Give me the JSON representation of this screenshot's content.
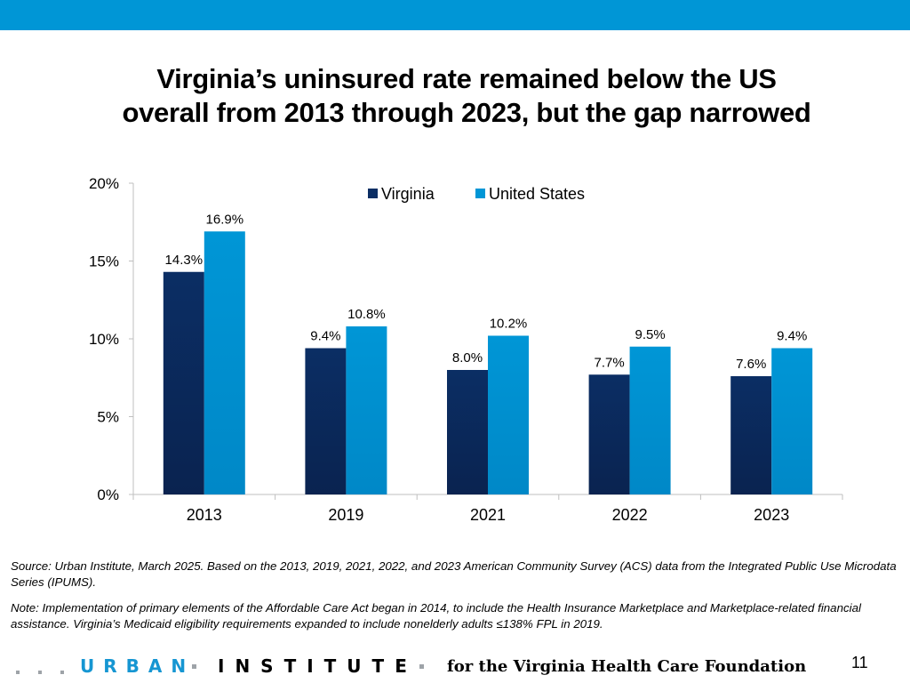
{
  "colors": {
    "accent": "#0096d6",
    "virginia": "#0b2e64",
    "us": "#0096d6",
    "axis": "#bfbfbf"
  },
  "title": {
    "line1": "Virginia’s uninsured rate remained below the US",
    "line2": "overall from 2013 through 2023, but the gap narrowed"
  },
  "chart_data": {
    "type": "bar",
    "categories": [
      "2013",
      "2019",
      "2021",
      "2022",
      "2023"
    ],
    "series": [
      {
        "name": "Virginia",
        "values": [
          14.3,
          9.4,
          8.0,
          7.7,
          7.6
        ],
        "labels": [
          "14.3%",
          "9.4%",
          "8.0%",
          "7.7%",
          "7.6%"
        ]
      },
      {
        "name": "United States",
        "values": [
          16.9,
          10.8,
          10.2,
          9.5,
          9.4
        ],
        "labels": [
          "16.9%",
          "10.8%",
          "10.2%",
          "9.5%",
          "9.4%"
        ]
      }
    ],
    "ylim": [
      0,
      20
    ],
    "yticks": [
      0,
      5,
      10,
      15,
      20
    ],
    "ytick_labels": [
      "0%",
      "5%",
      "10%",
      "15%",
      "20%"
    ],
    "legend_position": "top-center",
    "grid": false
  },
  "source_text": "Source: Urban Institute, March 2025. Based on the 2013, 2019, 2021, 2022, and 2023 American Community Survey (ACS) data from the Integrated Public Use Microdata Series (IPUMS).",
  "note_text": "Note: Implementation of primary elements of the Affordable Care Act began in 2014, to include the Health Insurance Marketplace and Marketplace-related financial assistance. Virginia’s Medicaid eligibility requirements expanded to include nonelderly adults ≤138% FPL in 2019.",
  "footer": {
    "logo_urban": "URBAN",
    "logo_institute": "INSTITUTE",
    "foundation": "for the Virginia Health Care Foundation",
    "page_number": "11"
  }
}
